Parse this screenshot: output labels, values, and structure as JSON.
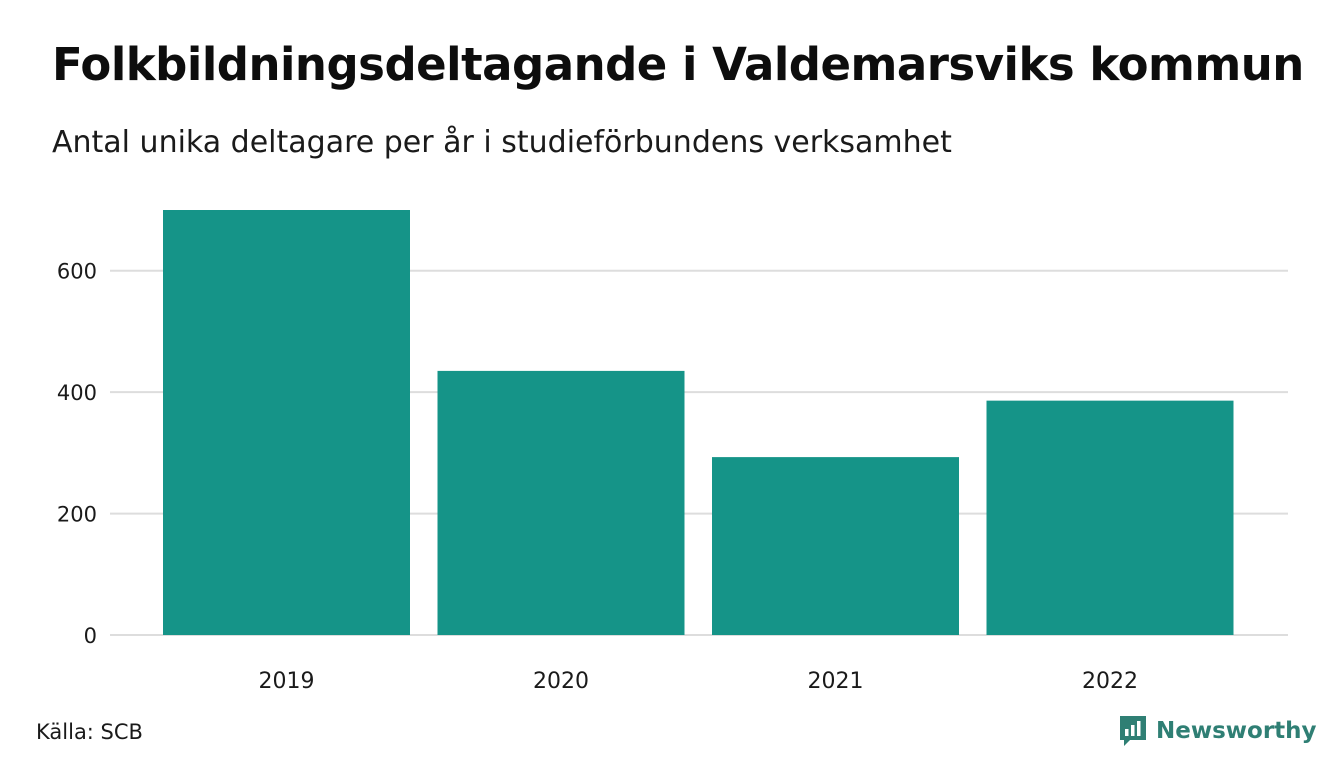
{
  "header": {
    "title": "Folkbildningsdeltagande i Valdemarsviks kommun",
    "subtitle": "Antal unika deltagare per år i studieförbundens verksamhet"
  },
  "footer": {
    "source": "Källa: SCB",
    "brand": "Newsworthy",
    "brand_icon": "newsworthy-logo-icon"
  },
  "colors": {
    "bar": "#159488",
    "grid": "#dddddd",
    "brand": "#2f7f74"
  },
  "chart_data": {
    "type": "bar",
    "categories": [
      "2019",
      "2020",
      "2021",
      "2022"
    ],
    "values": [
      700,
      435,
      293,
      386
    ],
    "title": "Folkbildningsdeltagande i Valdemarsviks kommun",
    "subtitle": "Antal unika deltagare per år i studieförbundens verksamhet",
    "xlabel": "",
    "ylabel": "",
    "ylim": [
      0,
      700
    ],
    "yticks": [
      0,
      200,
      400,
      600
    ],
    "grid": true,
    "legend": "none"
  }
}
